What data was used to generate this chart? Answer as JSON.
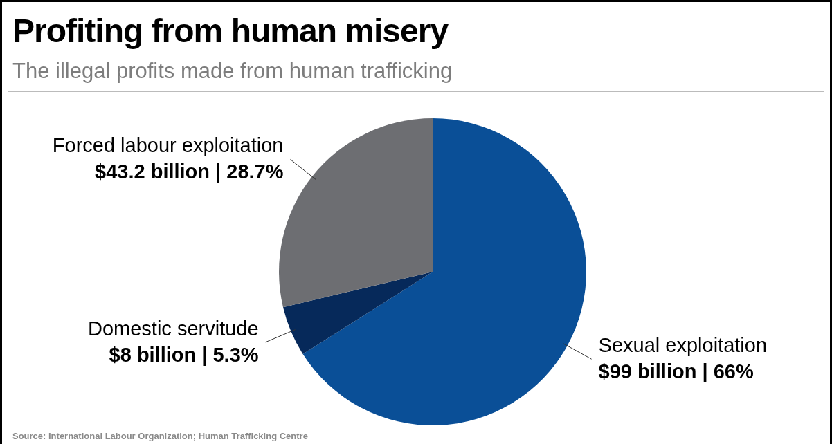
{
  "chart_data": {
    "type": "pie",
    "title": "Profiting from human misery",
    "subtitle": "The illegal profits made from human trafficking",
    "categories": [
      "Sexual exploitation",
      "Domestic servitude",
      "Forced labour exploitation"
    ],
    "values": [
      66,
      5.3,
      28.7
    ],
    "value_labels": [
      "$99 billion | 66%",
      "$8 billion | 5.3%",
      "$43.2 billion | 28.7%"
    ],
    "colors": [
      "#0a4f97",
      "#06295a",
      "#6d6e72"
    ],
    "legend": false,
    "annotations": [
      "Source: International Labour Organization; Human Trafficking Centre"
    ]
  }
}
